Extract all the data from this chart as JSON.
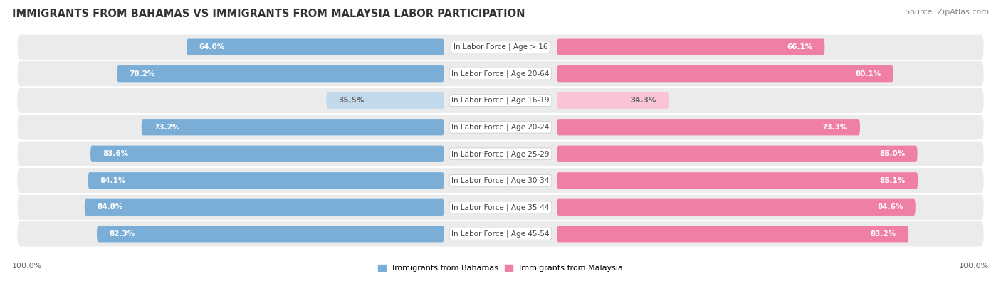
{
  "title": "IMMIGRANTS FROM BAHAMAS VS IMMIGRANTS FROM MALAYSIA LABOR PARTICIPATION",
  "source": "Source: ZipAtlas.com",
  "categories": [
    "In Labor Force | Age > 16",
    "In Labor Force | Age 20-64",
    "In Labor Force | Age 16-19",
    "In Labor Force | Age 20-24",
    "In Labor Force | Age 25-29",
    "In Labor Force | Age 30-34",
    "In Labor Force | Age 35-44",
    "In Labor Force | Age 45-54"
  ],
  "bahamas_values": [
    64.0,
    78.2,
    35.5,
    73.2,
    83.6,
    84.1,
    84.8,
    82.3
  ],
  "malaysia_values": [
    66.1,
    80.1,
    34.3,
    73.3,
    85.0,
    85.1,
    84.6,
    83.2
  ],
  "bahamas_color": "#7aaed6",
  "bahamas_color_light": "#c2d9ec",
  "malaysia_color": "#f07fa8",
  "malaysia_color_light": "#f9c4d6",
  "row_bg_color": "#ebebeb",
  "max_value": 100.0,
  "bar_height": 0.62,
  "legend_bahamas": "Immigrants from Bahamas",
  "legend_malaysia": "Immigrants from Malaysia",
  "title_fontsize": 10.5,
  "source_fontsize": 8,
  "label_fontsize": 7.5,
  "value_fontsize": 7.5,
  "footer_fontsize": 8
}
